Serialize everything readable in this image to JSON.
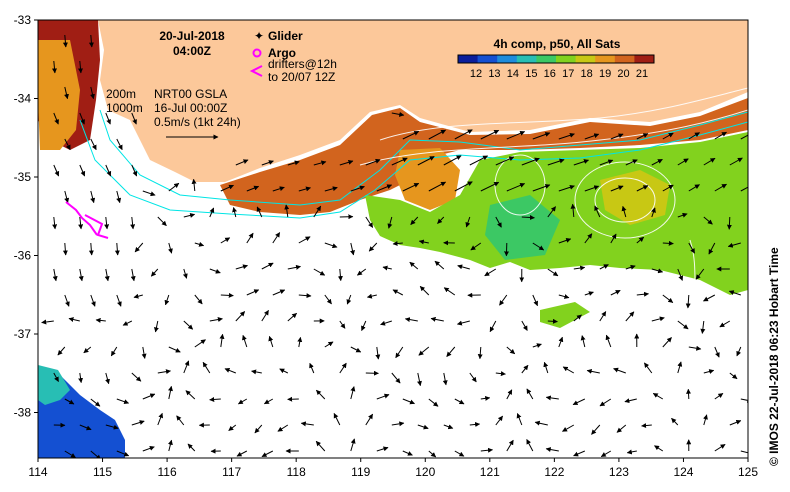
{
  "header": {
    "date": "20-Jul-2018",
    "time": "04:00Z"
  },
  "legend": {
    "glider_label": "Glider",
    "argo_label": "Argo",
    "drifters_line1": "drifters@12h",
    "drifters_line2": "to 20/07 12Z",
    "glider_color": "#ff00ff",
    "argo_color": "#ff00ff",
    "drifter_color": "#ff00ff"
  },
  "annotations": {
    "isobath_200": "200m",
    "isobath_1000": "1000m",
    "product": "NRT00 GSLA",
    "product_date": "16-Jul 00:00Z",
    "scale": "0.5m/s (1kt 24h)"
  },
  "colorbar": {
    "title": "4h comp, p50, All Sats",
    "ticks": [
      "12",
      "13",
      "14",
      "15",
      "16",
      "17",
      "18",
      "19",
      "20",
      "21"
    ],
    "colors": [
      "#0a1e9c",
      "#1450d2",
      "#1e8cdc",
      "#28beb4",
      "#3cc864",
      "#82d21e",
      "#c8c814",
      "#e6961e",
      "#d2641e",
      "#a01e14"
    ]
  },
  "axes": {
    "x_ticks": [
      "114",
      "115",
      "116",
      "117",
      "118",
      "119",
      "120",
      "121",
      "122",
      "123",
      "124",
      "125"
    ],
    "y_ticks": [
      "-33",
      "-34",
      "-35",
      "-36",
      "-37",
      "-38"
    ]
  },
  "credit": "©  IMOS 22-Jul-2018 06:23 Hobart Time",
  "colors": {
    "land": "#fcc89a",
    "isobath_200": "#00e5e5",
    "isobath_1000": "#00e5e5",
    "arrow": "#000000",
    "contour": "#ffffff"
  }
}
